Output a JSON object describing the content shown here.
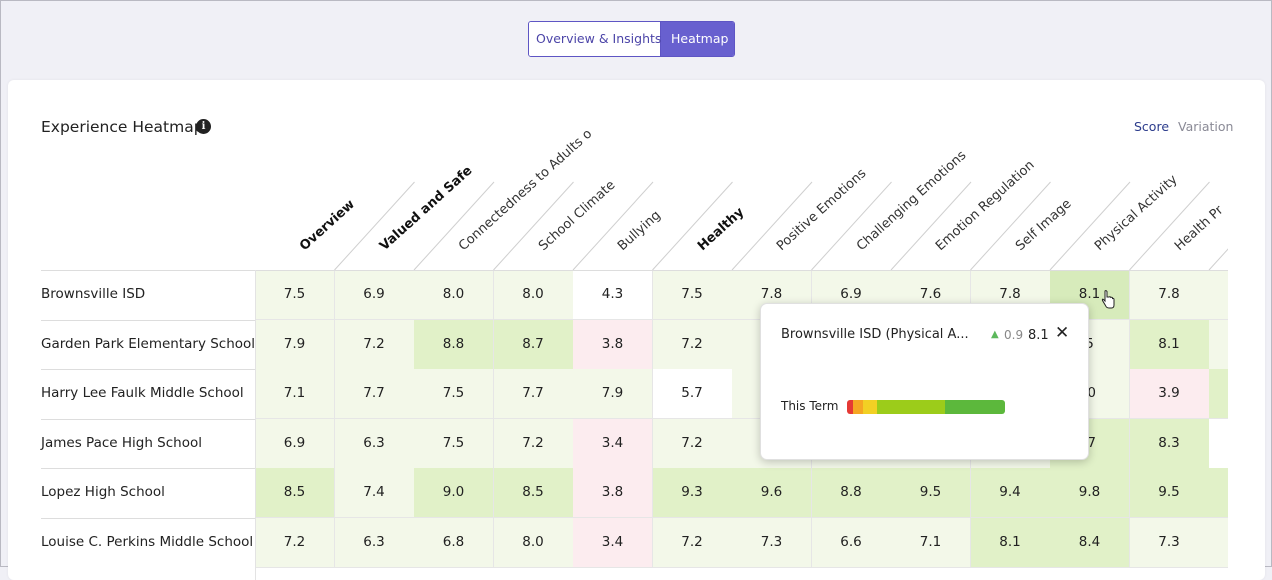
{
  "tabs": [
    {
      "label": "Overview & Insights",
      "active": false
    },
    {
      "label": "Heatmap",
      "active": true
    }
  ],
  "heatmap": {
    "title": "Experience Heatmap",
    "info_icon": "info-icon",
    "modes": {
      "score": "Score",
      "variation": "Variation",
      "selected": "score"
    },
    "columns": [
      {
        "label": "Overview",
        "bold": true
      },
      {
        "label": "Valued and Safe",
        "bold": true
      },
      {
        "label": "Connectedness to Adults o",
        "bold": false
      },
      {
        "label": "School Climate",
        "bold": false
      },
      {
        "label": "Bullying",
        "bold": false
      },
      {
        "label": "Healthy",
        "bold": true
      },
      {
        "label": "Positive Emotions",
        "bold": false
      },
      {
        "label": "Challenging Emotions",
        "bold": false
      },
      {
        "label": "Emotion Regulation",
        "bold": false
      },
      {
        "label": "Self Image",
        "bold": false
      },
      {
        "label": "Physical Activity",
        "bold": false
      },
      {
        "label": "Health Pr",
        "bold": false
      },
      {
        "label": "",
        "bold": false
      }
    ],
    "rows": [
      {
        "name": "Brownsville ISD",
        "values": [
          "7.5",
          "6.9",
          "8.0",
          "8.0",
          "4.3",
          "7.5",
          "7.8",
          "6.9",
          "7.6",
          "7.8",
          "8.1",
          "7.8",
          ""
        ]
      },
      {
        "name": "Garden Park Elementary School",
        "values": [
          "7.9",
          "7.2",
          "8.8",
          "8.7",
          "3.8",
          "7.2",
          "",
          "",
          "",
          "",
          "5",
          "8.1",
          ""
        ]
      },
      {
        "name": "Harry Lee Faulk Middle School",
        "values": [
          "7.1",
          "7.7",
          "7.5",
          "7.7",
          "7.9",
          "5.7",
          "",
          "",
          "",
          "",
          ".0",
          "3.9",
          ""
        ]
      },
      {
        "name": "James Pace High School",
        "values": [
          "6.9",
          "6.3",
          "7.5",
          "7.2",
          "3.4",
          "7.2",
          "",
          "",
          "",
          "",
          ".7",
          "8.3",
          ""
        ]
      },
      {
        "name": "Lopez High School",
        "values": [
          "8.5",
          "7.4",
          "9.0",
          "8.5",
          "3.8",
          "9.3",
          "9.6",
          "8.8",
          "9.5",
          "9.4",
          "9.8",
          "9.5",
          ""
        ]
      },
      {
        "name": "Louise C. Perkins Middle School",
        "values": [
          "7.2",
          "6.3",
          "6.8",
          "8.0",
          "3.4",
          "7.2",
          "7.3",
          "6.6",
          "7.1",
          "8.1",
          "8.4",
          "7.3",
          ""
        ]
      }
    ],
    "cell_colors": [
      [
        "#f3f8e9",
        "#f3f8e9",
        "#f3f8e9",
        "#f3f8e9",
        "#ffffff",
        "#f3f8e9",
        "#f3f8e9",
        "#f3f8e9",
        "#f3f8e9",
        "#f3f8e9",
        "#d7ebbb",
        "#f3f8e9",
        "#f3f8e9"
      ],
      [
        "#f3f8e9",
        "#f3f8e9",
        "#e1f1c8",
        "#e1f1c8",
        "#fcecef",
        "#f3f8e9",
        "#f3f8e9",
        "#f3f8e9",
        "#f3f8e9",
        "#f3f8e9",
        "#f3f8e9",
        "#e1f1c8",
        "#f3f8e9"
      ],
      [
        "#f3f8e9",
        "#f3f8e9",
        "#f3f8e9",
        "#f3f8e9",
        "#f3f8e9",
        "#ffffff",
        "#f3f8e9",
        "#f3f8e9",
        "#f3f8e9",
        "#f3f8e9",
        "#f3f8e9",
        "#fcecef",
        "#e1f1c8"
      ],
      [
        "#f3f8e9",
        "#f3f8e9",
        "#f3f8e9",
        "#f3f8e9",
        "#fcecef",
        "#f3f8e9",
        "#f3f8e9",
        "#f3f8e9",
        "#f3f8e9",
        "#f3f8e9",
        "#e1f1c8",
        "#e1f1c8",
        "#ffffff"
      ],
      [
        "#e1f1c8",
        "#f3f8e9",
        "#e1f1c8",
        "#e1f1c8",
        "#fcecef",
        "#e1f1c8",
        "#e1f1c8",
        "#e1f1c8",
        "#e1f1c8",
        "#e1f1c8",
        "#e1f1c8",
        "#e1f1c8",
        "#e1f1c8"
      ],
      [
        "#f3f8e9",
        "#f3f8e9",
        "#f3f8e9",
        "#f3f8e9",
        "#fcecef",
        "#f3f8e9",
        "#f3f8e9",
        "#f3f8e9",
        "#f3f8e9",
        "#e1f1c8",
        "#e1f1c8",
        "#f3f8e9",
        "#f3f8e9"
      ]
    ]
  },
  "tooltip": {
    "title": "Brownsville ISD (Physical A...",
    "delta_icon": "triangle-up-icon",
    "delta": "0.9",
    "score": "8.1",
    "close_icon": "close-icon",
    "term_label": "This Term",
    "bar_segments": [
      {
        "color": "#e53935",
        "fraction": 0.04
      },
      {
        "color": "#f5a623",
        "fraction": 0.06
      },
      {
        "color": "#f2d024",
        "fraction": 0.09
      },
      {
        "color": "#9ccc1a",
        "fraction": 0.43
      },
      {
        "color": "#5cb83c",
        "fraction": 0.38
      }
    ]
  }
}
